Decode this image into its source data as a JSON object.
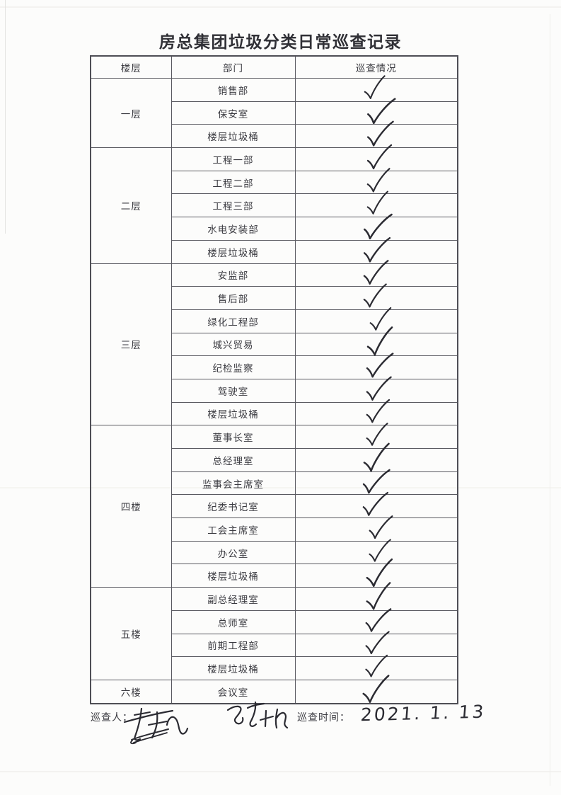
{
  "page": {
    "title": "房总集团垃圾分类日常巡查记录"
  },
  "colors": {
    "paper": "#fcfcfb",
    "table_line": "#55555c",
    "text": "#3a3a40",
    "ink": "#2b2b32"
  },
  "table": {
    "headers": [
      "楼层",
      "部门",
      "巡查情况"
    ],
    "check_symbol": "✓",
    "floors": [
      {
        "floor": "一层",
        "departments": [
          {
            "name": "销售部",
            "checked": true
          },
          {
            "name": "保安室",
            "checked": true
          },
          {
            "name": "楼层垃圾桶",
            "checked": true
          }
        ]
      },
      {
        "floor": "二层",
        "departments": [
          {
            "name": "工程一部",
            "checked": true
          },
          {
            "name": "工程二部",
            "checked": true
          },
          {
            "name": "工程三部",
            "checked": true
          },
          {
            "name": "水电安装部",
            "checked": true
          },
          {
            "name": "楼层垃圾桶",
            "checked": true
          }
        ]
      },
      {
        "floor": "三层",
        "departments": [
          {
            "name": "安监部",
            "checked": true
          },
          {
            "name": "售后部",
            "checked": true
          },
          {
            "name": "绿化工程部",
            "checked": true
          },
          {
            "name": "城兴贸易",
            "checked": true
          },
          {
            "name": "纪检监察",
            "checked": true
          },
          {
            "name": "驾驶室",
            "checked": true
          },
          {
            "name": "楼层垃圾桶",
            "checked": true
          }
        ]
      },
      {
        "floor": "四楼",
        "departments": [
          {
            "name": "董事长室",
            "checked": true
          },
          {
            "name": "总经理室",
            "checked": true
          },
          {
            "name": "监事会主席室",
            "checked": true
          },
          {
            "name": "纪委书记室",
            "checked": true
          },
          {
            "name": "工会主席室",
            "checked": true
          },
          {
            "name": "办公室",
            "checked": true
          },
          {
            "name": "楼层垃圾桶",
            "checked": true
          }
        ]
      },
      {
        "floor": "五楼",
        "departments": [
          {
            "name": "副总经理室",
            "checked": true
          },
          {
            "name": "总师室",
            "checked": true
          },
          {
            "name": "前期工程部",
            "checked": true
          },
          {
            "name": "楼层垃圾桶",
            "checked": true
          }
        ]
      },
      {
        "floor": "六楼",
        "departments": [
          {
            "name": "会议室",
            "checked": true
          }
        ]
      }
    ]
  },
  "footer": {
    "inspector_label": "巡查人：",
    "time_label": "巡查时间：",
    "time_value": "2021. 1. 13",
    "signature_count": 2
  }
}
